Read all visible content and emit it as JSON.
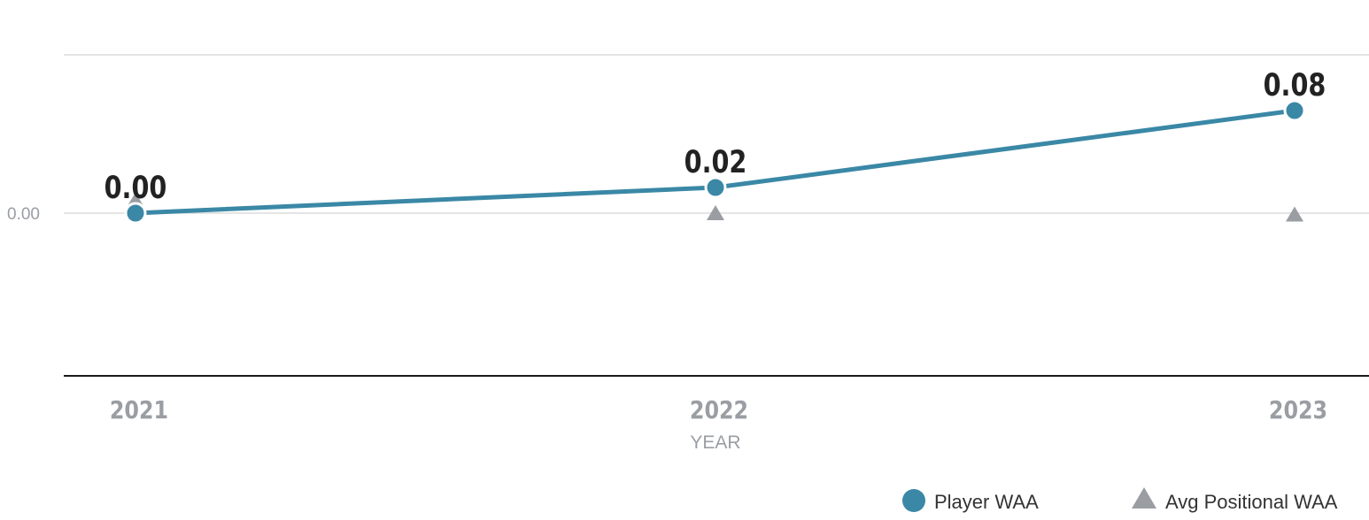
{
  "chart_data": {
    "type": "line",
    "x": [
      "2021",
      "2022",
      "2023"
    ],
    "xlabel": "YEAR",
    "ylabel": "",
    "yticks": [
      "0.00"
    ],
    "series": [
      {
        "name": "Player WAA",
        "values": [
          0.0,
          0.02,
          0.08
        ],
        "labels": [
          "0.00",
          "0.02",
          "0.08"
        ],
        "color": "#3a88a6",
        "marker": "circle"
      },
      {
        "name": "Avg Positional WAA",
        "values": [
          0.01,
          0.0,
          -0.001
        ],
        "color": "#9a9ea3",
        "marker": "triangle"
      }
    ],
    "grid": true,
    "legend": "bottom-right"
  }
}
